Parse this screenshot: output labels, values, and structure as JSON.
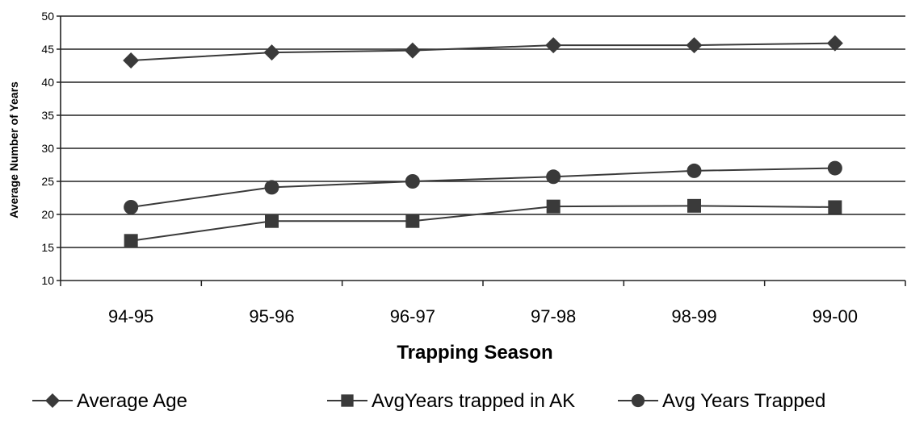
{
  "chart_data": {
    "type": "line",
    "title": "",
    "xlabel": "Trapping Season",
    "ylabel": "Average Number of Years",
    "categories": [
      "94-95",
      "95-96",
      "96-97",
      "97-98",
      "98-99",
      "99-00"
    ],
    "ylim": [
      10,
      50
    ],
    "yticks": [
      "10",
      "15",
      "20",
      "25",
      "30",
      "35",
      "40",
      "45",
      "50"
    ],
    "grid": true,
    "legend_position": "bottom",
    "series": [
      {
        "name": "Average Age",
        "marker": "diamond",
        "color": "#3a3a3a",
        "values": [
          43.3,
          44.5,
          44.8,
          45.6,
          45.6,
          45.9
        ]
      },
      {
        "name": "AvgYears trapped in AK",
        "marker": "square",
        "color": "#3a3a3a",
        "values": [
          16.0,
          19.0,
          19.0,
          21.2,
          21.3,
          21.1
        ]
      },
      {
        "name": "Avg Years Trapped",
        "marker": "circle",
        "color": "#3a3a3a",
        "values": [
          21.1,
          24.1,
          25.0,
          25.7,
          26.6,
          27.0
        ]
      }
    ]
  }
}
